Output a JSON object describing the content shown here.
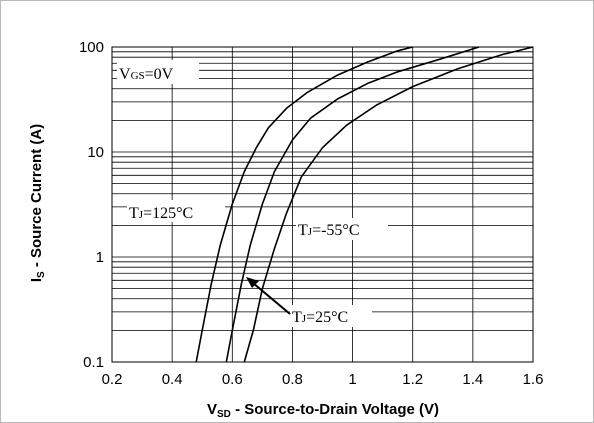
{
  "chart_data": {
    "type": "line",
    "xlabel": {
      "main": "V",
      "sub": "SD",
      "rest": " - Source-to-Drain Voltage (V)"
    },
    "ylabel": {
      "main": "I",
      "sub": "S",
      "rest": " - Source Current (A)"
    },
    "xlim": [
      0.2,
      1.6
    ],
    "ylim": [
      0.1,
      100
    ],
    "yscale": "log",
    "grid": true,
    "xticks": [
      "0.2",
      "0.4",
      "0.6",
      "0.8",
      "1",
      "1.2",
      "1.4",
      "1.6"
    ],
    "yticks": [
      "0.1",
      "1",
      "10",
      "100"
    ],
    "series": [
      {
        "x": [
          0.48,
          0.5,
          0.53,
          0.56,
          0.6,
          0.64,
          0.68,
          0.72,
          0.78,
          0.85,
          0.95,
          1.05,
          1.15,
          1.2
        ],
        "y": [
          0.1,
          0.2,
          0.55,
          1.3,
          3.2,
          6.5,
          11,
          17,
          26,
          37,
          54,
          72,
          92,
          100
        ]
      },
      {
        "x": [
          0.58,
          0.6,
          0.63,
          0.66,
          0.7,
          0.74,
          0.8,
          0.86,
          0.95,
          1.05,
          1.15,
          1.3,
          1.42
        ],
        "y": [
          0.1,
          0.2,
          0.55,
          1.3,
          3.2,
          6.5,
          13,
          21,
          32,
          45,
          58,
          78,
          100
        ]
      },
      {
        "x": [
          0.64,
          0.67,
          0.7,
          0.74,
          0.78,
          0.83,
          0.9,
          0.98,
          1.08,
          1.2,
          1.35,
          1.5,
          1.6
        ],
        "y": [
          0.1,
          0.2,
          0.5,
          1.2,
          2.6,
          5.8,
          11,
          18,
          28,
          42,
          62,
          85,
          100
        ]
      }
    ],
    "annotations": {
      "vgs": {
        "main": "V",
        "sub": "GS",
        "rest": "=0V"
      },
      "t125": {
        "main": "T",
        "sub": "J",
        "rest": "=125°C"
      },
      "tm55": {
        "main": "T",
        "sub": "J",
        "rest": "=-55°C"
      },
      "t25": {
        "main": "T",
        "sub": "J",
        "rest": "=25°C"
      }
    }
  }
}
